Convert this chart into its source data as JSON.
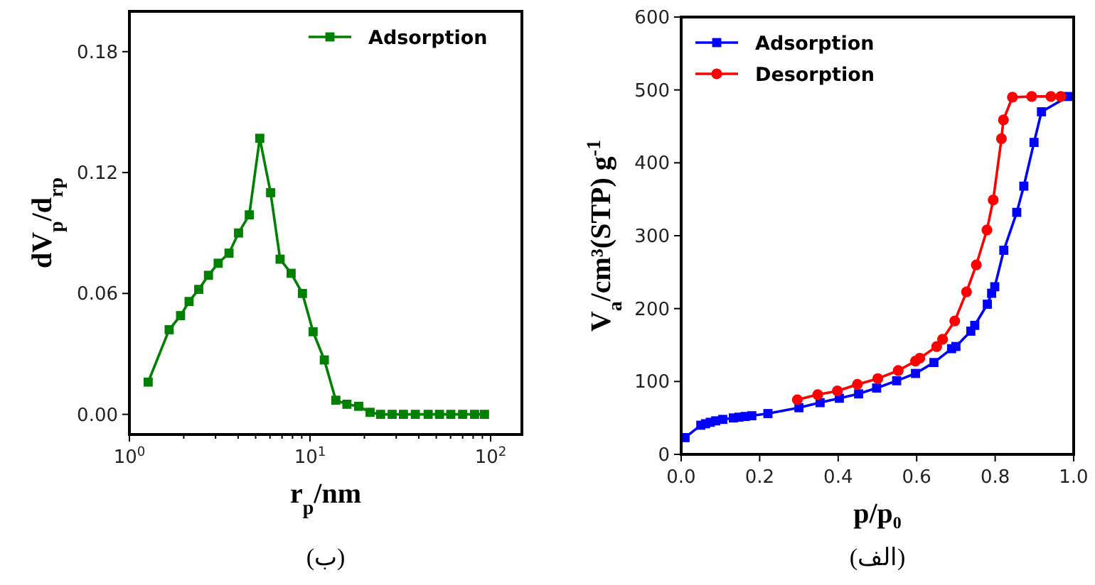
{
  "chart_data": [
    {
      "type": "line",
      "xlabel": "r$_{p}$/nm",
      "ylabel": "dV$_{p}$/d$_{rp}$",
      "log": "x",
      "marker": "square",
      "legend": "top right",
      "grid": false,
      "xlim": [
        1,
        149
      ],
      "xticks": [
        {
          "value": 1,
          "label": "10$^{0}$"
        },
        {
          "value": 2,
          "label": null
        },
        {
          "value": 3,
          "label": null
        },
        {
          "value": 4,
          "label": null
        },
        {
          "value": 5,
          "label": null
        },
        {
          "value": 6,
          "label": null
        },
        {
          "value": 7,
          "label": null
        },
        {
          "value": 8,
          "label": null
        },
        {
          "value": 9,
          "label": null
        },
        {
          "value": 10,
          "label": "10$^{1}$"
        },
        {
          "value": 20,
          "label": null
        },
        {
          "value": 30,
          "label": null
        },
        {
          "value": 40,
          "label": null
        },
        {
          "value": 50,
          "label": null
        },
        {
          "value": 60,
          "label": null
        },
        {
          "value": 70,
          "label": null
        },
        {
          "value": 80,
          "label": null
        },
        {
          "value": 90,
          "label": null
        },
        {
          "value": 100,
          "label": "10$^{2}$"
        }
      ],
      "ylim": [
        -0.01,
        0.2
      ],
      "yticks": [
        {
          "value": 0,
          "label": "0.00"
        },
        {
          "value": 0.06,
          "label": "0.06"
        },
        {
          "value": 0.12,
          "label": "0.12"
        },
        {
          "value": 0.18,
          "label": "0.18"
        }
      ],
      "series": [
        {
          "name": "Adsorption",
          "color": "#008000",
          "x": [
            1.27,
            1.66,
            1.92,
            2.14,
            2.42,
            2.74,
            3.1,
            3.56,
            4.02,
            4.61,
            5.27,
            6.05,
            6.83,
            7.86,
            9.08,
            10.4,
            12,
            13.9,
            16,
            18.6,
            21.5,
            24.6,
            28.5,
            32.9,
            38.3,
            45.1,
            52.1,
            60.2,
            70,
            81.5,
            92.5
          ],
          "values": [
            0.016,
            0.042,
            0.049,
            0.056,
            0.062,
            0.069,
            0.075,
            0.08,
            0.09,
            0.099,
            0.137,
            0.11,
            0.077,
            0.07,
            0.06,
            0.041,
            0.027,
            0.007,
            0.005,
            0.004,
            0.001,
            0,
            0,
            0,
            0,
            0,
            0,
            0,
            0,
            0,
            0
          ]
        }
      ],
      "annotations": [
        "(ب)"
      ]
    },
    {
      "type": "line",
      "xlabel": "p/p₀",
      "ylabel": "V$_{a}$/cm³(STP) g$^{-1}$",
      "legend": "top left",
      "grid": false,
      "xlim": [
        0,
        1
      ],
      "xticks": [
        {
          "value": 0,
          "label": "0.0"
        },
        {
          "value": 0.2,
          "label": "0.2"
        },
        {
          "value": 0.4,
          "label": "0.4"
        },
        {
          "value": 0.6,
          "label": "0.6"
        },
        {
          "value": 0.8,
          "label": "0.8"
        },
        {
          "value": 1,
          "label": "1.0"
        }
      ],
      "ylim": [
        0,
        600
      ],
      "yticks": [
        0,
        100,
        200,
        300,
        400,
        500,
        600
      ],
      "series": [
        {
          "name": "Adsorption",
          "color": "#0000ff",
          "marker": "square",
          "x": [
            0.01,
            0.05,
            0.062,
            0.074,
            0.088,
            0.106,
            0.133,
            0.147,
            0.163,
            0.18,
            0.221,
            0.3,
            0.354,
            0.403,
            0.452,
            0.498,
            0.549,
            0.597,
            0.644,
            0.689,
            0.7,
            0.738,
            0.748,
            0.78,
            0.791,
            0.799,
            0.822,
            0.855,
            0.873,
            0.899,
            0.918,
            0.986
          ],
          "values": [
            23,
            40,
            42,
            44,
            46,
            48,
            50,
            51,
            52,
            53,
            56,
            64,
            71,
            77,
            83,
            91,
            101,
            111,
            126,
            145,
            148,
            169,
            177,
            206,
            221,
            230,
            280,
            332,
            368,
            428,
            470,
            491
          ]
        },
        {
          "name": "Desorption",
          "color": "#ff0000",
          "marker": "circle",
          "x": [
            0.296,
            0.348,
            0.398,
            0.449,
            0.501,
            0.553,
            0.597,
            0.608,
            0.651,
            0.666,
            0.697,
            0.727,
            0.752,
            0.779,
            0.795,
            0.816,
            0.821,
            0.844,
            0.893,
            0.942,
            0.967
          ],
          "values": [
            75,
            82,
            87,
            96,
            104,
            115,
            128,
            132,
            148,
            158,
            183,
            223,
            260,
            308,
            349,
            433,
            459,
            490,
            491,
            491,
            491
          ]
        }
      ],
      "annotations": [
        "(الف)"
      ]
    }
  ]
}
